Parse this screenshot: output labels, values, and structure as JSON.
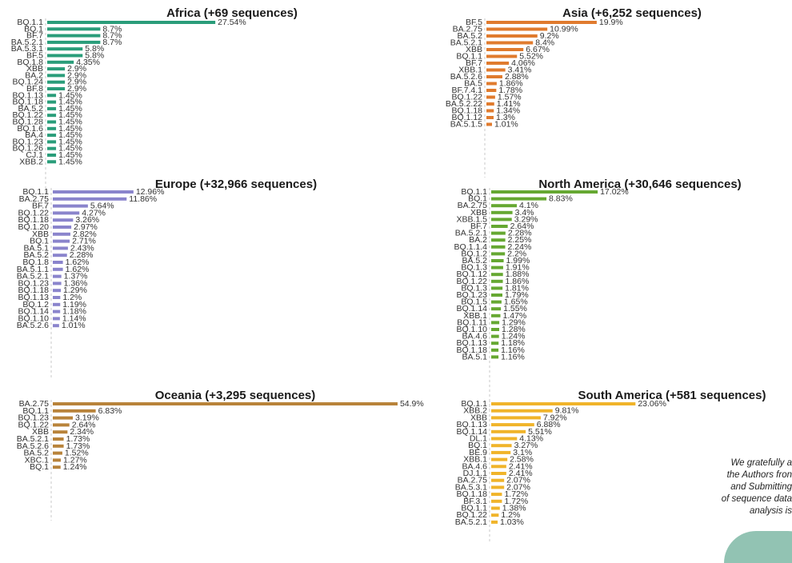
{
  "colors": {
    "Africa": "#2a9d7a",
    "Asia": "#e07b2e",
    "Europe": "#8a84cc",
    "North America": "#66a832",
    "Oceania": "#b8833a",
    "South America": "#f0b42a"
  },
  "acknowledgement": [
    "We gratefully a",
    "the Authors fron",
    "and Submitting",
    "of sequence data",
    "analysis is"
  ],
  "chart_data": [
    {
      "type": "bar",
      "orientation": "horizontal",
      "title": "Africa (+69 sequences)",
      "categories": [
        "BQ.1.1",
        "BQ.1",
        "BF.7",
        "BA.5.2.1",
        "BA.5.3.1",
        "BF.5",
        "BQ.1.8",
        "XBB",
        "BA.2",
        "BQ.1.24",
        "BF.8",
        "BQ.1.13",
        "BQ.1.18",
        "BA.5.2",
        "BQ.1.22",
        "BQ.1.28",
        "BQ.1.6",
        "BA.4",
        "BQ.1.23",
        "BQ.1.26",
        "CJ.1",
        "XBB.2"
      ],
      "values": [
        27.54,
        8.7,
        8.7,
        8.7,
        5.8,
        5.8,
        4.35,
        2.9,
        2.9,
        2.9,
        2.9,
        1.45,
        1.45,
        1.45,
        1.45,
        1.45,
        1.45,
        1.45,
        1.45,
        1.45,
        1.45,
        1.45
      ],
      "labels": [
        "27.54%",
        "8.7%",
        "8.7%",
        "8.7%",
        "5.8%",
        "5.8%",
        "4.35%",
        "2.9%",
        "2.9%",
        "2.9%",
        "2.9%",
        "1.45%",
        "1.45%",
        "1.45%",
        "1.45%",
        "1.45%",
        "1.45%",
        "1.45%",
        "1.45%",
        "1.45%",
        "1.45%",
        "1.45%"
      ]
    },
    {
      "type": "bar",
      "orientation": "horizontal",
      "title": "Asia (+6,252 sequences)",
      "categories": [
        "BF.5",
        "BA.2.75",
        "BA.5.2",
        "BA.5.2.1",
        "XBB",
        "BQ.1.1",
        "BF.7",
        "XBB.1",
        "BA.5.2.6",
        "BA.5",
        "BF.7.4.1",
        "BQ.1.22",
        "BA.5.2.22",
        "BQ.1.18",
        "BQ.1.12",
        "BA.5.1.5"
      ],
      "values": [
        19.9,
        10.99,
        9.2,
        8.4,
        6.67,
        5.52,
        4.06,
        3.41,
        2.88,
        1.86,
        1.78,
        1.57,
        1.41,
        1.34,
        1.3,
        1.01
      ],
      "labels": [
        "19.9%",
        "10.99%",
        "9.2%",
        "8.4%",
        "6.67%",
        "5.52%",
        "4.06%",
        "3.41%",
        "2.88%",
        "1.86%",
        "1.78%",
        "1.57%",
        "1.41%",
        "1.34%",
        "1.3%",
        "1.01%"
      ]
    },
    {
      "type": "bar",
      "orientation": "horizontal",
      "title": "Europe (+32,966 sequences)",
      "categories": [
        "BQ.1.1",
        "BA.2.75",
        "BF.7",
        "BQ.1.22",
        "BQ.1.18",
        "BQ.1.20",
        "XBB",
        "BQ.1",
        "BA.5.1",
        "BA.5.2",
        "BQ.1.8",
        "BA.5.1.1",
        "BA.5.2.1",
        "BQ.1.23",
        "BQ.1.18",
        "BQ.1.13",
        "BQ.1.2",
        "BQ.1.14",
        "BQ.1.10",
        "BA.5.2.6"
      ],
      "values": [
        12.96,
        11.86,
        5.64,
        4.27,
        3.26,
        2.97,
        2.82,
        2.71,
        2.43,
        2.28,
        1.62,
        1.62,
        1.37,
        1.36,
        1.29,
        1.2,
        1.19,
        1.18,
        1.14,
        1.01
      ],
      "labels": [
        "12.96%",
        "11.86%",
        "5.64%",
        "4.27%",
        "3.26%",
        "2.97%",
        "2.82%",
        "2.71%",
        "2.43%",
        "2.28%",
        "1.62%",
        "1.62%",
        "1.37%",
        "1.36%",
        "1.29%",
        "1.2%",
        "1.19%",
        "1.18%",
        "1.14%",
        "1.01%"
      ]
    },
    {
      "type": "bar",
      "orientation": "horizontal",
      "title": "North America (+30,646 sequences)",
      "categories": [
        "BQ.1.1",
        "BQ.1",
        "BA.2.75",
        "XBB",
        "XBB.1.5",
        "BF.7",
        "BA.5.2.1",
        "BA.2",
        "BQ.1.1.4",
        "BQ.1.2",
        "BA.5.2",
        "BQ.1.3",
        "BQ.1.12",
        "BQ.1.22",
        "BQ.1.3",
        "BQ.1.23",
        "BQ.1.5",
        "BQ.1.14",
        "XBB.1",
        "BQ.1.11",
        "BQ.1.10",
        "BA.4.6",
        "BQ.1.13",
        "BQ.1.18",
        "BA.5.1"
      ],
      "values": [
        17.02,
        8.83,
        4.1,
        3.4,
        3.29,
        2.64,
        2.28,
        2.25,
        2.24,
        2.2,
        1.99,
        1.91,
        1.88,
        1.86,
        1.81,
        1.79,
        1.65,
        1.55,
        1.47,
        1.29,
        1.28,
        1.24,
        1.18,
        1.16,
        1.16
      ],
      "labels": [
        "17.02%",
        "8.83%",
        "4.1%",
        "3.4%",
        "3.29%",
        "2.64%",
        "2.28%",
        "2.25%",
        "2.24%",
        "2.2%",
        "1.99%",
        "1.91%",
        "1.88%",
        "1.86%",
        "1.81%",
        "1.79%",
        "1.65%",
        "1.55%",
        "1.47%",
        "1.29%",
        "1.28%",
        "1.24%",
        "1.18%",
        "1.16%",
        "1.16%"
      ]
    },
    {
      "type": "bar",
      "orientation": "horizontal",
      "title": "Oceania (+3,295 sequences)",
      "categories": [
        "BA.2.75",
        "BQ.1.1",
        "BQ.1.23",
        "BQ.1.22",
        "XBB",
        "BA.5.2.1",
        "BA.5.2.6",
        "BA.5.2",
        "XBC.1",
        "BQ.1"
      ],
      "values": [
        54.9,
        6.83,
        3.19,
        2.64,
        2.34,
        1.73,
        1.73,
        1.52,
        1.27,
        1.24
      ],
      "labels": [
        "54.9%",
        "6.83%",
        "3.19%",
        "2.64%",
        "2.34%",
        "1.73%",
        "1.73%",
        "1.52%",
        "1.27%",
        "1.24%"
      ]
    },
    {
      "type": "bar",
      "orientation": "horizontal",
      "title": "South America (+581 sequences)",
      "categories": [
        "BQ.1.1",
        "XBB.2",
        "XBB",
        "BQ.1.13",
        "BQ.1.14",
        "DL.1",
        "BQ.1",
        "BE.9",
        "XBB.1",
        "BA.4.6",
        "DJ.1.1",
        "BA.2.75",
        "BA.5.3.1",
        "BQ.1.18",
        "BF.3.1",
        "BQ.1.1",
        "BQ.1.22",
        "BA.5.2.1"
      ],
      "values": [
        23.06,
        9.81,
        7.92,
        6.88,
        5.51,
        4.13,
        3.27,
        3.1,
        2.58,
        2.41,
        2.41,
        2.07,
        2.07,
        1.72,
        1.72,
        1.38,
        1.2,
        1.03
      ],
      "labels": [
        "23.06%",
        "9.81%",
        "7.92%",
        "6.88%",
        "5.51%",
        "4.13%",
        "3.27%",
        "3.1%",
        "2.58%",
        "2.41%",
        "2.41%",
        "2.07%",
        "2.07%",
        "1.72%",
        "1.72%",
        "1.38%",
        "1.2%",
        "1.03%"
      ]
    }
  ]
}
